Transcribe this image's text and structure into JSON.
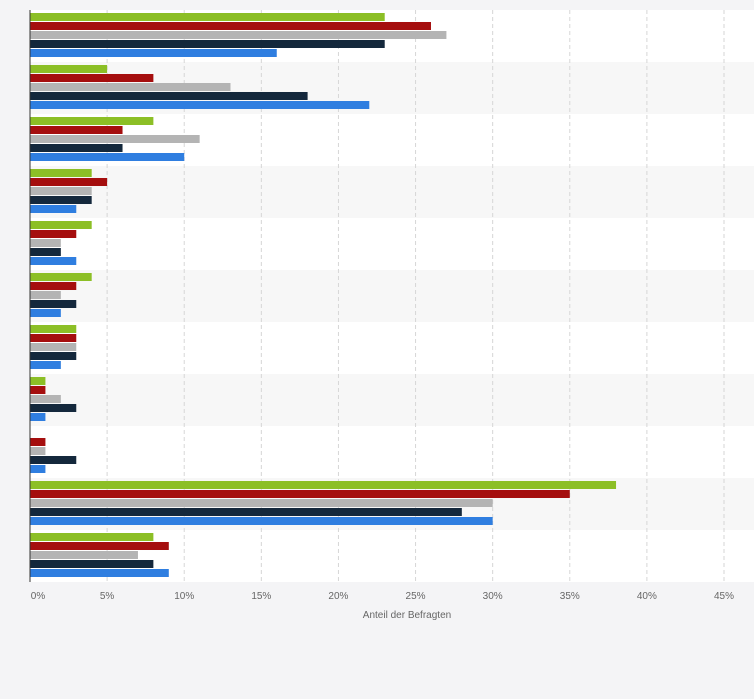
{
  "chart_data": {
    "type": "bar",
    "orientation": "horizontal",
    "xlabel": "Anteil der Befragten",
    "xlim": [
      0,
      45
    ],
    "xticks": [
      0,
      5,
      10,
      15,
      20,
      25,
      30,
      35,
      40,
      45
    ],
    "tick_suffix": "%",
    "grid": true,
    "category_count": 11,
    "series": [
      {
        "color": "#8cbf26",
        "values": [
          23,
          5,
          8,
          4,
          4,
          4,
          3,
          1,
          0,
          38,
          8
        ]
      },
      {
        "color": "#a50e0e",
        "values": [
          26,
          8,
          6,
          5,
          3,
          3,
          3,
          1,
          1,
          35,
          9
        ]
      },
      {
        "color": "#b4b4b4",
        "values": [
          27,
          13,
          11,
          4,
          2,
          2,
          3,
          2,
          1,
          30,
          7
        ]
      },
      {
        "color": "#14283c",
        "values": [
          23,
          18,
          6,
          4,
          2,
          3,
          3,
          3,
          3,
          28,
          8
        ]
      },
      {
        "color": "#2f7ee0",
        "values": [
          16,
          22,
          10,
          3,
          3,
          2,
          2,
          1,
          1,
          30,
          9
        ]
      }
    ]
  }
}
